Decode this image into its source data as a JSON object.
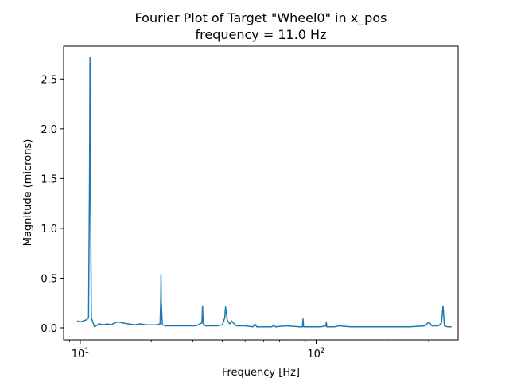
{
  "chart_data": {
    "type": "line",
    "title": "Fourier Plot of Target \"Wheel0\" in x_pos",
    "subtitle": "frequency = 11.0 Hz",
    "xlabel": "Frequency [Hz]",
    "ylabel": "Magnitude (microns)",
    "xscale": "log",
    "xlim": [
      8.5,
      400
    ],
    "ylim": [
      -0.12,
      2.83
    ],
    "grid": false,
    "xticks": [
      {
        "value": 10,
        "base": "10",
        "exp": "1"
      },
      {
        "value": 100,
        "base": "10",
        "exp": "2"
      }
    ],
    "yticks": [
      {
        "value": 0.0,
        "label": "0.0"
      },
      {
        "value": 0.5,
        "label": "0.5"
      },
      {
        "value": 1.0,
        "label": "1.0"
      },
      {
        "value": 1.5,
        "label": "1.5"
      },
      {
        "value": 2.0,
        "label": "2.0"
      },
      {
        "value": 2.5,
        "label": "2.5"
      }
    ],
    "series": [
      {
        "color": "#1f77b4",
        "x": [
          9.7,
          10.0,
          10.3,
          10.6,
          10.85,
          10.95,
          11.0,
          11.05,
          11.15,
          11.5,
          12.0,
          12.5,
          13.0,
          13.5,
          14.0,
          14.5,
          15.0,
          16.0,
          17.0,
          18.0,
          19.0,
          20.0,
          21.0,
          21.8,
          21.95,
          22.0,
          22.05,
          22.3,
          23.0,
          25.0,
          28.0,
          31.0,
          32.8,
          33.0,
          33.2,
          34.0,
          36.0,
          38.0,
          40.0,
          41.0,
          41.3,
          42.0,
          43.0,
          43.8,
          44.5,
          46.0,
          50.0,
          54.0,
          55.0,
          56.0,
          60.0,
          65.0,
          66.0,
          67.0,
          75.0,
          85.0,
          87.5,
          88.0,
          88.5,
          95.0,
          105.0,
          110.0,
          110.5,
          111.0,
          120.0,
          125.0,
          140.0,
          170.0,
          200.0,
          250.0,
          290.0,
          300.0,
          310.0,
          330.0,
          340.0,
          345.0,
          350.0,
          360.0,
          375.0
        ],
        "values": [
          0.07,
          0.06,
          0.07,
          0.08,
          0.1,
          1.5,
          2.72,
          1.4,
          0.1,
          0.01,
          0.04,
          0.03,
          0.04,
          0.03,
          0.05,
          0.06,
          0.05,
          0.04,
          0.03,
          0.04,
          0.03,
          0.03,
          0.03,
          0.04,
          0.3,
          0.54,
          0.25,
          0.03,
          0.02,
          0.02,
          0.02,
          0.02,
          0.05,
          0.22,
          0.04,
          0.02,
          0.02,
          0.02,
          0.03,
          0.1,
          0.21,
          0.08,
          0.04,
          0.07,
          0.05,
          0.02,
          0.02,
          0.01,
          0.04,
          0.01,
          0.01,
          0.01,
          0.03,
          0.01,
          0.02,
          0.01,
          0.01,
          0.09,
          0.01,
          0.01,
          0.01,
          0.02,
          0.06,
          0.01,
          0.01,
          0.02,
          0.01,
          0.01,
          0.01,
          0.01,
          0.02,
          0.06,
          0.02,
          0.02,
          0.05,
          0.22,
          0.02,
          0.01,
          0.01
        ]
      }
    ]
  }
}
